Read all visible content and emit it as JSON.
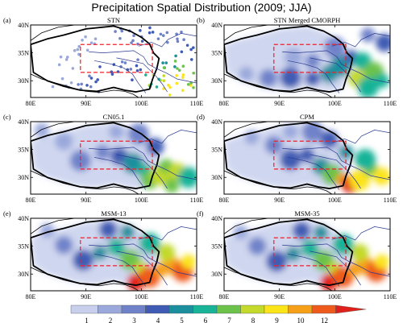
{
  "chart_data": {
    "type": "heatmap",
    "title": "Precipitation Spatial Distribution (2009; JJA)",
    "x_ticks": [
      "80E",
      "90E",
      "100E",
      "110E"
    ],
    "y_ticks": [
      "40N",
      "35N",
      "30N"
    ],
    "xlim": [
      80,
      110
    ],
    "ylim": [
      27,
      40
    ],
    "box_region": {
      "lon": [
        89,
        102
      ],
      "lat": [
        31.5,
        36.5
      ]
    },
    "colorbar": {
      "ticks": [
        "1",
        "2",
        "3",
        "4",
        "5",
        "6",
        "7",
        "8",
        "9",
        "10",
        "12"
      ],
      "colors": [
        "#c7cfec",
        "#9aa8dc",
        "#6f82c9",
        "#3f5bb3",
        "#1b8f9e",
        "#19b398",
        "#6cc24a",
        "#c3d92c",
        "#fbe41a",
        "#f6a01a",
        "#ee5a1c",
        "#e0201b"
      ]
    },
    "panels": [
      {
        "id": "a",
        "label": "(a)",
        "title": "STN",
        "samples": [
          [
            86.5,
            33.8,
            1
          ],
          [
            88.5,
            35.6,
            1
          ],
          [
            91,
            36.8,
            1
          ],
          [
            96.5,
            38.9,
            2
          ],
          [
            98.5,
            37.2,
            2
          ],
          [
            101.5,
            38.6,
            3
          ],
          [
            104,
            38.1,
            2
          ],
          [
            106.5,
            37.5,
            2
          ],
          [
            109,
            35.6,
            3
          ],
          [
            104.5,
            33.2,
            4
          ],
          [
            106.5,
            32.2,
            6
          ],
          [
            107.5,
            30.6,
            8
          ],
          [
            109,
            29.6,
            6
          ],
          [
            103.5,
            30.1,
            7
          ],
          [
            105.2,
            28.8,
            8
          ],
          [
            101.8,
            29.4,
            5
          ],
          [
            99.3,
            31.8,
            3
          ],
          [
            97.1,
            33.2,
            2
          ],
          [
            94.6,
            31.6,
            3
          ],
          [
            91.8,
            29.8,
            3
          ],
          [
            89.2,
            29.4,
            2
          ],
          [
            86.4,
            29.1,
            1
          ]
        ]
      },
      {
        "id": "b",
        "label": "(b)",
        "title": "STN Merged CMORPH",
        "samples": [
          [
            84,
            31.2,
            1
          ],
          [
            88,
            30.5,
            2
          ],
          [
            92,
            30.6,
            3
          ],
          [
            96,
            30.4,
            3
          ],
          [
            99,
            31.2,
            4
          ],
          [
            101,
            32.6,
            4
          ],
          [
            103,
            34.2,
            3
          ],
          [
            105,
            33.5,
            5
          ],
          [
            107,
            31.5,
            6
          ],
          [
            108.5,
            30,
            5
          ],
          [
            104,
            30.4,
            7
          ],
          [
            106,
            28.8,
            5
          ],
          [
            96,
            33.5,
            2
          ],
          [
            92.5,
            34.2,
            1
          ],
          [
            100,
            36,
            2
          ],
          [
            106,
            38.2,
            2
          ],
          [
            109,
            36.8,
            3
          ]
        ]
      },
      {
        "id": "c",
        "label": "(c)",
        "title": "CN05.1",
        "samples": [
          [
            82,
            38.5,
            1
          ],
          [
            86,
            36.5,
            1
          ],
          [
            89,
            33,
            2
          ],
          [
            93,
            34.5,
            2
          ],
          [
            96,
            33.8,
            3
          ],
          [
            98.5,
            32.5,
            4
          ],
          [
            100.5,
            31.2,
            5
          ],
          [
            101.5,
            29.5,
            6
          ],
          [
            103.5,
            30.5,
            7
          ],
          [
            104.5,
            32,
            6
          ],
          [
            106.5,
            31,
            7
          ],
          [
            108.5,
            30,
            5
          ],
          [
            105.5,
            28.5,
            6
          ],
          [
            102.5,
            35.5,
            3
          ],
          [
            99.5,
            37.8,
            2
          ],
          [
            95.5,
            38.2,
            1
          ]
        ]
      },
      {
        "id": "d",
        "label": "(d)",
        "title": "CPM",
        "samples": [
          [
            85,
            37.2,
            1
          ],
          [
            89,
            35.8,
            2
          ],
          [
            92,
            33.2,
            3
          ],
          [
            95,
            34,
            3
          ],
          [
            97.5,
            32,
            4
          ],
          [
            99.5,
            30.5,
            6
          ],
          [
            101.5,
            29.5,
            9
          ],
          [
            102.8,
            28.8,
            12
          ],
          [
            104.5,
            29.5,
            8
          ],
          [
            106.5,
            31.5,
            6
          ],
          [
            108.5,
            30.2,
            8
          ],
          [
            105.5,
            33.2,
            5
          ],
          [
            102,
            34.5,
            4
          ],
          [
            99,
            36.8,
            3
          ],
          [
            96,
            38.2,
            2
          ],
          [
            92,
            38.2,
            1
          ]
        ]
      },
      {
        "id": "e",
        "label": "(e)",
        "title": "MSM-13",
        "samples": [
          [
            83,
            37.8,
            1
          ],
          [
            86,
            35.2,
            2
          ],
          [
            89.5,
            32.5,
            3
          ],
          [
            92.5,
            33.8,
            4
          ],
          [
            95.5,
            34.8,
            5
          ],
          [
            98,
            32.5,
            6
          ],
          [
            100,
            31,
            7
          ],
          [
            99,
            28.5,
            12
          ],
          [
            101.5,
            29.5,
            10
          ],
          [
            103.5,
            30.8,
            9
          ],
          [
            105.5,
            31.5,
            9
          ],
          [
            107.5,
            30.5,
            10
          ],
          [
            108.5,
            32.2,
            8
          ],
          [
            104.5,
            33.8,
            7
          ],
          [
            101.5,
            35.5,
            5
          ],
          [
            97.5,
            37.5,
            4
          ],
          [
            94,
            38,
            3
          ]
        ]
      },
      {
        "id": "f",
        "label": "(f)",
        "title": "MSM-35",
        "samples": [
          [
            83,
            37.5,
            1
          ],
          [
            86,
            35,
            2
          ],
          [
            89.5,
            32.3,
            3
          ],
          [
            92.5,
            33.6,
            4
          ],
          [
            95.5,
            34.6,
            5
          ],
          [
            98,
            32.4,
            6
          ],
          [
            100,
            31,
            7
          ],
          [
            99,
            28.5,
            12
          ],
          [
            101.5,
            29.5,
            10
          ],
          [
            103.5,
            30.8,
            9
          ],
          [
            105.5,
            31.5,
            9
          ],
          [
            107.5,
            30.5,
            10
          ],
          [
            108.5,
            32.2,
            8
          ],
          [
            104.5,
            33.8,
            7
          ],
          [
            101.5,
            35.3,
            5
          ],
          [
            97.5,
            37.4,
            4
          ],
          [
            94,
            37.8,
            3
          ]
        ]
      }
    ]
  }
}
